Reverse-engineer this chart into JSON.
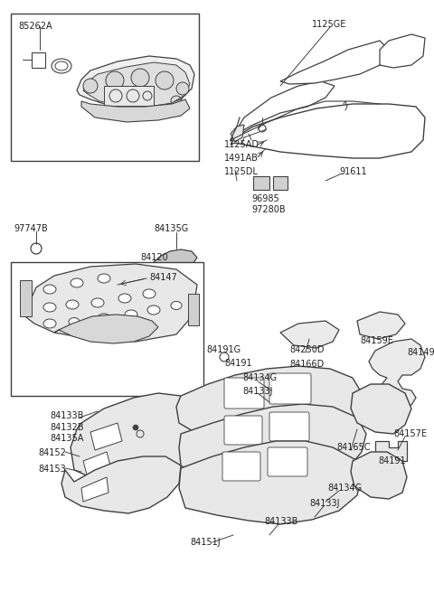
{
  "bg_color": "#ffffff",
  "line_color": "#404040",
  "text_color": "#202020",
  "fig_w": 4.8,
  "fig_h": 6.55,
  "dpi": 100,
  "xlim": [
    0,
    480
  ],
  "ylim": [
    0,
    655
  ]
}
